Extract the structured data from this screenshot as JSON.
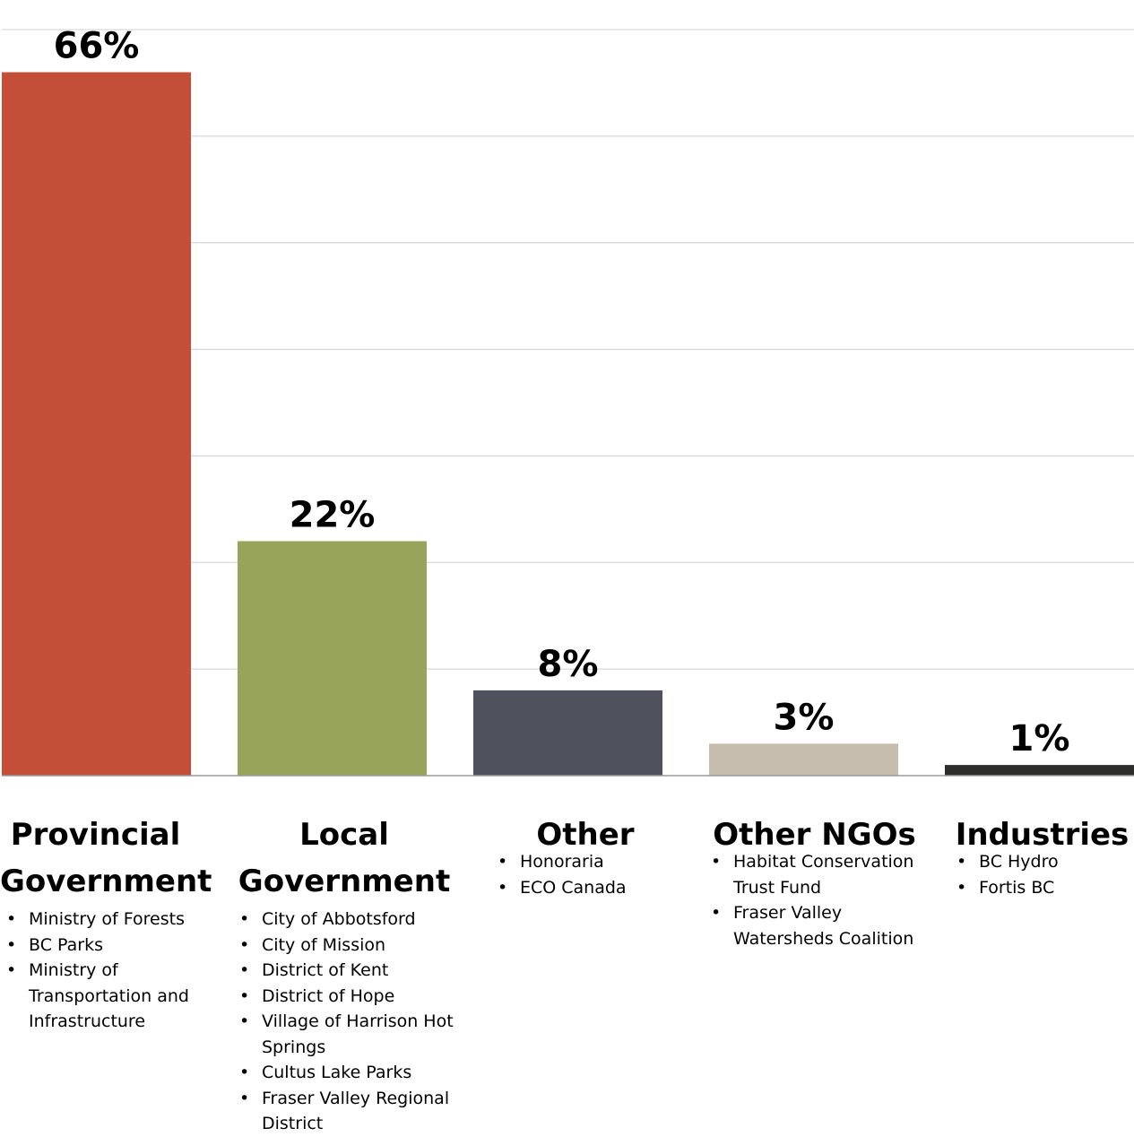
{
  "chart_data": {
    "type": "bar",
    "categories": [
      "Provincial Government",
      "Local Government",
      "Other",
      "Other NGOs",
      "Industries"
    ],
    "values": [
      66,
      22,
      8,
      3,
      1
    ],
    "data_labels": [
      "66%",
      "22%",
      "8%",
      "3%",
      "1%"
    ],
    "colors": [
      "#c44f38",
      "#98a45a",
      "#4f515c",
      "#c6bdae",
      "#2d2e2a"
    ],
    "ylim": [
      0,
      70
    ],
    "grid": true,
    "gridline_step": 10
  },
  "categories": [
    {
      "title": "Provincial Government",
      "items": [
        "Ministry of Forests",
        "BC Parks",
        "Ministry of Transportation and Infrastructure"
      ]
    },
    {
      "title": "Local Government",
      "items": [
        "City of Abbotsford",
        "City of Mission",
        "District of Kent",
        "District of Hope",
        "Village of Harrison Hot Springs",
        "Cultus Lake Parks",
        "Fraser Valley Regional District"
      ]
    },
    {
      "title": "Other",
      "items": [
        "Honoraria",
        "ECO Canada"
      ]
    },
    {
      "title": "Other NGOs",
      "items": [
        "Habitat Conservation Trust Fund",
        "Fraser Valley Watersheds Coalition"
      ]
    },
    {
      "title": "Industries",
      "items": [
        "BC Hydro",
        "Fortis BC"
      ]
    }
  ]
}
